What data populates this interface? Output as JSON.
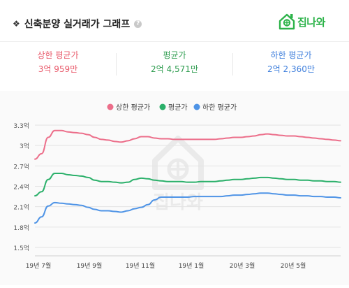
{
  "header": {
    "bullet": "❖",
    "title": "신축분양 실거래가 그래프",
    "help_icon": "?",
    "logo_text": "집나와"
  },
  "summary": {
    "items": [
      {
        "label": "상한 평균가",
        "value": "3억 959만",
        "color": "#e8596a"
      },
      {
        "label": "평균가",
        "value": "2억 4,571만",
        "color": "#2e9c4f"
      },
      {
        "label": "하한 평균가",
        "value": "2억 2,360만",
        "color": "#3f7fdc"
      }
    ]
  },
  "watermark_text": "집나와",
  "chart_data": {
    "type": "line",
    "x_ticks": [
      "19년 7월",
      "19년 9월",
      "19년 11월",
      "19년 1월",
      "20년 3월",
      "20년 5월"
    ],
    "y_ticks": [
      "3.3억",
      "3억",
      "2.7억",
      "2.4억",
      "2.1억",
      "1.8억",
      "1.5억"
    ],
    "ylim": [
      1.5,
      3.3
    ],
    "x": [
      0,
      1,
      2,
      3,
      4,
      5,
      6,
      7,
      8,
      9,
      10,
      11,
      12,
      13,
      14,
      15,
      16,
      17,
      18,
      19,
      20,
      21,
      22,
      23,
      24,
      25,
      26,
      27,
      28,
      29,
      30,
      31,
      32,
      33,
      34,
      35,
      36,
      37,
      38,
      39,
      40,
      41,
      42,
      43,
      44,
      45,
      46
    ],
    "series": [
      {
        "name": "상한 평균가",
        "color": "#ec6e8a",
        "values": [
          2.8,
          2.88,
          3.12,
          3.22,
          3.22,
          3.2,
          3.19,
          3.18,
          3.16,
          3.12,
          3.09,
          3.08,
          3.06,
          3.05,
          3.07,
          3.1,
          3.13,
          3.13,
          3.11,
          3.1,
          3.1,
          3.09,
          3.09,
          3.09,
          3.09,
          3.09,
          3.09,
          3.09,
          3.1,
          3.11,
          3.12,
          3.12,
          3.13,
          3.14,
          3.16,
          3.17,
          3.16,
          3.15,
          3.14,
          3.14,
          3.13,
          3.12,
          3.11,
          3.1,
          3.09,
          3.08,
          3.07
        ]
      },
      {
        "name": "평균가",
        "color": "#2bb06a",
        "values": [
          2.26,
          2.32,
          2.5,
          2.59,
          2.59,
          2.57,
          2.56,
          2.55,
          2.53,
          2.49,
          2.47,
          2.47,
          2.46,
          2.45,
          2.46,
          2.5,
          2.52,
          2.51,
          2.49,
          2.48,
          2.47,
          2.47,
          2.47,
          2.46,
          2.46,
          2.47,
          2.47,
          2.47,
          2.48,
          2.49,
          2.5,
          2.5,
          2.51,
          2.52,
          2.53,
          2.53,
          2.52,
          2.51,
          2.5,
          2.5,
          2.49,
          2.49,
          2.48,
          2.48,
          2.47,
          2.47,
          2.46
        ]
      },
      {
        "name": "하한 평균가",
        "color": "#4f94e6",
        "values": [
          1.86,
          1.95,
          2.11,
          2.16,
          2.15,
          2.14,
          2.13,
          2.12,
          2.09,
          2.06,
          2.04,
          2.04,
          2.03,
          2.02,
          2.04,
          2.07,
          2.09,
          2.13,
          2.2,
          2.24,
          2.24,
          2.24,
          2.24,
          2.24,
          2.25,
          2.25,
          2.25,
          2.25,
          2.25,
          2.26,
          2.27,
          2.27,
          2.28,
          2.29,
          2.3,
          2.3,
          2.29,
          2.28,
          2.27,
          2.27,
          2.26,
          2.26,
          2.25,
          2.25,
          2.24,
          2.24,
          2.23
        ]
      }
    ],
    "legend_position": "top-center",
    "grid": "horizontal"
  }
}
